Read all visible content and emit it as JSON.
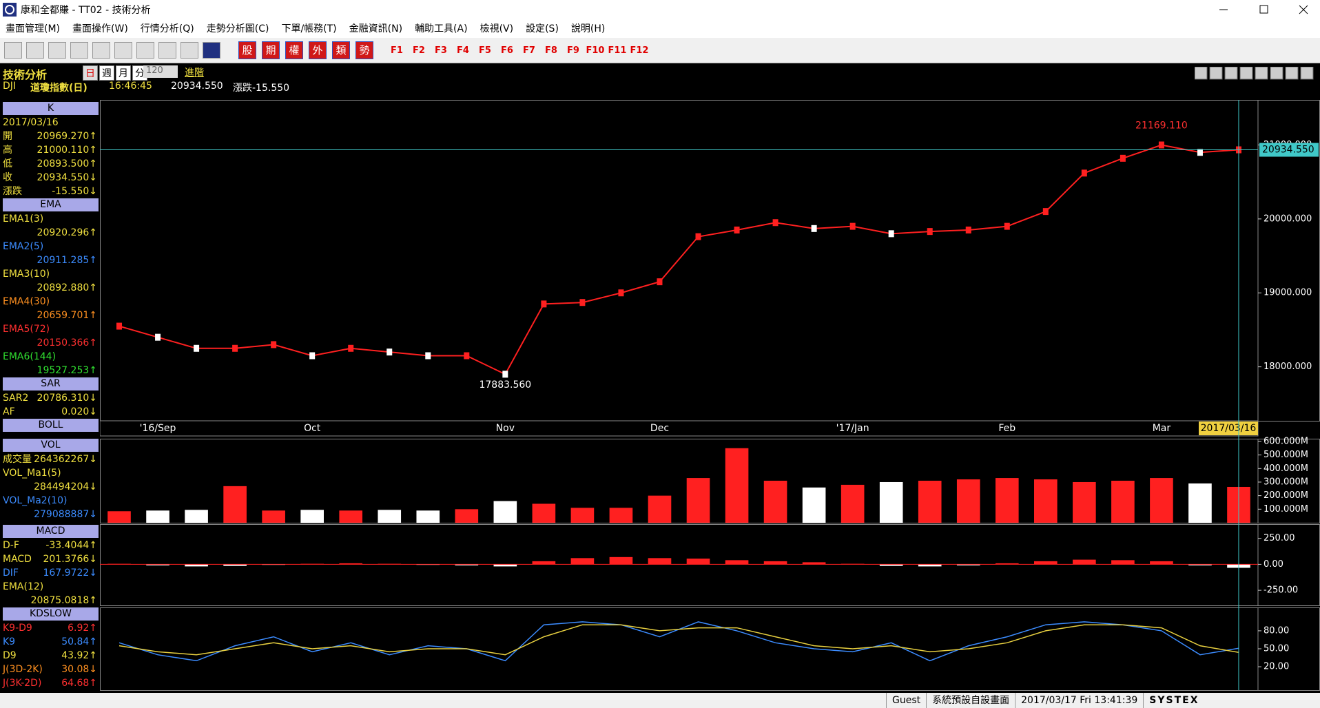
{
  "window": {
    "title": "康和全都賺 - TT02 - 技術分析"
  },
  "menu": [
    "畫面管理(M)",
    "畫面操作(W)",
    "行情分析(Q)",
    "走勢分析圖(C)",
    "下單/帳務(T)",
    "金融資訊(N)",
    "輔助工具(A)",
    "檢視(V)",
    "設定(S)",
    "說明(H)"
  ],
  "toolbar": {
    "tabs": [
      "股",
      "期",
      "權",
      "外",
      "類",
      "勢"
    ],
    "fkeys": [
      "F1",
      "F2",
      "F3",
      "F4",
      "F5",
      "F6",
      "F7",
      "F8",
      "F9",
      "F10",
      "F11",
      "F12"
    ]
  },
  "header": {
    "title": "技術分析",
    "periods": [
      "日",
      "週",
      "月",
      "分"
    ],
    "count": "120",
    "mode": "進階",
    "symbol": "DJI",
    "name": "道瓊指數(日)",
    "time": "16:46:45",
    "price": "20934.550",
    "change": "漲跌-15.550"
  },
  "left_panel": [
    {
      "title": "K",
      "rows": [
        {
          "label": "2017/03/16",
          "value": "",
          "color": "#f0e040"
        },
        {
          "label": "開",
          "value": "20969.270↑",
          "color": "#f0e040"
        },
        {
          "label": "高",
          "value": "21000.110↑",
          "color": "#f0e040"
        },
        {
          "label": "低",
          "value": "20893.500↑",
          "color": "#f0e040"
        },
        {
          "label": "收",
          "value": "20934.550↓",
          "color": "#f0e040"
        },
        {
          "label": "漲跌",
          "value": "-15.550↓",
          "color": "#f0e040"
        }
      ]
    },
    {
      "title": "EMA",
      "rows": [
        {
          "label": "EMA1(3)",
          "value": "20920.296↑",
          "color": "#f0e040"
        },
        {
          "label": "EMA2(5)",
          "value": "20911.285↑",
          "color": "#3c8cff"
        },
        {
          "label": "EMA3(10)",
          "value": "20892.880↑",
          "color": "#f0e040"
        },
        {
          "label": "EMA4(30)",
          "value": "20659.701↑",
          "color": "#ff9020"
        },
        {
          "label": "EMA5(72)",
          "value": "20150.366↑",
          "color": "#ff3030"
        },
        {
          "label": "EMA6(144)",
          "value": "19527.253↑",
          "color": "#30e030"
        }
      ]
    },
    {
      "title": "SAR",
      "rows": [
        {
          "label": "SAR2",
          "value": "20786.310↓",
          "color": "#f0e040"
        },
        {
          "label": "AF",
          "value": "0.020↓",
          "color": "#f0e040"
        }
      ]
    },
    {
      "title": "BOLL",
      "rows": []
    },
    {
      "title": "VOL",
      "rows": [
        {
          "label": "成交量",
          "value": "264362267↓",
          "color": "#f0e040"
        },
        {
          "label": "VOL_Ma1(5)",
          "value": "284494204↓",
          "color": "#f0e040"
        },
        {
          "label": "VOL_Ma2(10)",
          "value": "279088887↓",
          "color": "#3c8cff"
        }
      ]
    },
    {
      "title": "MACD",
      "rows": [
        {
          "label": "D-F",
          "value": "-33.4044↑",
          "color": "#f0e040"
        },
        {
          "label": "MACD",
          "value": "201.3766↓",
          "color": "#f0e040"
        },
        {
          "label": "DIF",
          "value": "167.9722↓",
          "color": "#3c8cff"
        },
        {
          "label": "EMA(12)",
          "value": "20875.0818↑",
          "color": "#f0e040"
        }
      ]
    },
    {
      "title": "KDSLOW",
      "rows": [
        {
          "label": "K9-D9",
          "value": "6.92↑",
          "color": "#ff3030"
        },
        {
          "label": "K9",
          "value": "50.84↑",
          "color": "#3c8cff"
        },
        {
          "label": "D9",
          "value": "43.92↑",
          "color": "#f0e040"
        },
        {
          "label": "J(3D-2K)",
          "value": "30.08↓",
          "color": "#ff9020"
        },
        {
          "label": "J(3K-2D)",
          "value": "64.68↑",
          "color": "#ff3030"
        }
      ]
    }
  ],
  "status": [
    "Guest",
    "系統預設自設畫面",
    "2017/03/17 Fri 13:41:39",
    "SYSTEX"
  ],
  "chart_data": [
    {
      "type": "line",
      "categories": [
        null,
        "'16/Sep",
        null,
        null,
        null,
        "Oct",
        null,
        null,
        null,
        null,
        "Nov",
        null,
        null,
        null,
        "Dec",
        null,
        null,
        null,
        null,
        "'17/Jan",
        null,
        null,
        null,
        "Feb",
        null,
        null,
        null,
        "Mar",
        null,
        "2017/03/16"
      ],
      "values": [
        18550,
        18400,
        18250,
        18250,
        18300,
        18150,
        18250,
        18200,
        18150,
        18150,
        17900,
        18850,
        18870,
        19000,
        19150,
        19760,
        19850,
        19950,
        19870,
        19900,
        19800,
        19830,
        19850,
        19900,
        20100,
        20620,
        20820,
        21000,
        20900,
        20934.55
      ],
      "color": "#ff2020",
      "ylim": [
        17270,
        21610
      ],
      "yticks": [
        {
          "value": 18000,
          "label": "18000.000"
        },
        {
          "value": 19000,
          "label": "19000.000"
        },
        {
          "value": 20000,
          "label": "20000.000"
        },
        {
          "value": 21000,
          "label": "21000.000"
        }
      ],
      "annotations": [
        {
          "text": "21169.110",
          "value": 21169.11,
          "x": 27
        },
        {
          "text": "17883.560",
          "value": 17883.56,
          "x": 10
        }
      ],
      "last_price": {
        "value": 20934.55,
        "label": "20934.550"
      }
    },
    {
      "type": "bar",
      "values": [
        85000000,
        90000000,
        95000000,
        270000000,
        90000000,
        95000000,
        90000000,
        95000000,
        90000000,
        100000000,
        160000000,
        140000000,
        110000000,
        110000000,
        200000000,
        330000000,
        550000000,
        310000000,
        260000000,
        280000000,
        300000000,
        310000000,
        320000000,
        330000000,
        320000000,
        300000000,
        310000000,
        330000000,
        290000000,
        264362267
      ],
      "ylim": [
        0,
        620000000
      ],
      "yticks": [
        {
          "value": 100000000,
          "label": "100.000M"
        },
        {
          "value": 200000000,
          "label": "200.000M"
        },
        {
          "value": 300000000,
          "label": "300.000M"
        },
        {
          "value": 400000000,
          "label": "400.000M"
        },
        {
          "value": 500000000,
          "label": "500.000M"
        },
        {
          "value": 600000000,
          "label": "600.000M"
        }
      ]
    },
    {
      "type": "bar",
      "values": [
        5,
        -10,
        -20,
        -15,
        -5,
        5,
        10,
        5,
        -5,
        -10,
        -20,
        30,
        60,
        70,
        60,
        55,
        40,
        30,
        20,
        5,
        -15,
        -20,
        -10,
        10,
        30,
        45,
        40,
        30,
        -10,
        -33.4044
      ],
      "color": "#ff2020",
      "ylim": [
        -395,
        387
      ],
      "yticks": [
        {
          "value": -250,
          "label": "-250.00"
        },
        {
          "value": 0,
          "label": "0.00"
        },
        {
          "value": 250,
          "label": "250.00"
        }
      ]
    },
    {
      "type": "line",
      "series": [
        {
          "color": "#3c8cff",
          "values": [
            60,
            40,
            30,
            55,
            70,
            45,
            60,
            40,
            55,
            50,
            30,
            90,
            95,
            90,
            70,
            95,
            80,
            60,
            50,
            45,
            60,
            30,
            55,
            70,
            90,
            95,
            90,
            80,
            40,
            50.84
          ]
        },
        {
          "color": "#e8d040",
          "values": [
            55,
            45,
            40,
            50,
            60,
            50,
            55,
            45,
            50,
            50,
            40,
            70,
            90,
            90,
            80,
            85,
            85,
            70,
            55,
            50,
            55,
            45,
            50,
            60,
            80,
            90,
            90,
            85,
            55,
            43.92
          ]
        }
      ],
      "ylim": [
        -19,
        119
      ],
      "yticks": [
        {
          "value": 20,
          "label": "20.00"
        },
        {
          "value": 50,
          "label": "50.00"
        },
        {
          "value": 80,
          "label": "80.00"
        }
      ]
    }
  ]
}
